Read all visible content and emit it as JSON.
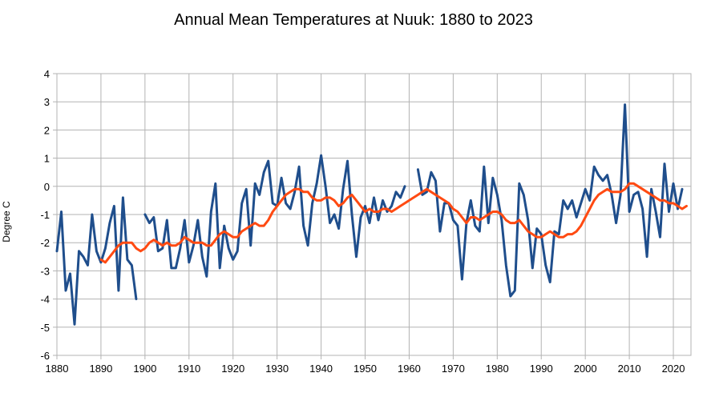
{
  "chart_data": {
    "type": "line",
    "title": "Annual Mean Temperatures at Nuuk: 1880 to 2023",
    "xlabel": "",
    "ylabel": "Degree C",
    "xlim": [
      1880,
      2024
    ],
    "ylim": [
      -6,
      4
    ],
    "x_ticks": [
      1880,
      1890,
      1900,
      1910,
      1920,
      1930,
      1940,
      1950,
      1960,
      1970,
      1980,
      1990,
      2000,
      2010,
      2020
    ],
    "y_ticks": [
      -6,
      -5,
      -4,
      -3,
      -2,
      -1,
      0,
      1,
      2,
      3,
      4
    ],
    "grid": true,
    "legend": "none",
    "series": [
      {
        "color": "#1f4e8c",
        "x_start": 1880,
        "values": [
          -2.3,
          -0.9,
          -3.7,
          -3.1,
          -4.9,
          -2.3,
          -2.5,
          -2.8,
          -1.0,
          -2.3,
          -2.7,
          -2.2,
          -1.3,
          -0.7,
          -3.7,
          -0.4,
          -2.6,
          -2.8,
          -4.0,
          null,
          -1.0,
          -1.3,
          -1.1,
          -2.3,
          -2.2,
          -1.2,
          -2.9,
          -2.9,
          -2.2,
          -1.2,
          -2.7,
          -2.1,
          -1.2,
          -2.5,
          -3.2,
          -0.9,
          0.1,
          -2.9,
          -1.4,
          -2.2,
          -2.6,
          -2.3,
          -0.6,
          -0.1,
          -2.1,
          0.1,
          -0.3,
          0.5,
          0.9,
          -0.6,
          -0.7,
          0.3,
          -0.6,
          -0.8,
          -0.2,
          0.7,
          -1.4,
          -2.1,
          -0.6,
          0.1,
          1.1,
          0.0,
          -1.3,
          -1.0,
          -1.5,
          -0.1,
          0.9,
          -1.0,
          -2.5,
          -1.1,
          -0.7,
          -1.3,
          -0.4,
          -1.2,
          -0.5,
          -0.9,
          -0.7,
          -0.2,
          -0.4,
          0.0,
          null,
          null,
          0.6,
          -0.3,
          -0.2,
          0.5,
          0.2,
          -1.6,
          -0.6,
          -0.6,
          -1.2,
          -1.4,
          -3.3,
          -1.3,
          -0.5,
          -1.4,
          -1.6,
          0.7,
          -1.3,
          0.3,
          -0.3,
          -1.2,
          -2.8,
          -3.9,
          -3.7,
          0.1,
          -0.3,
          -1.2,
          -2.9,
          -1.5,
          -1.7,
          -2.8,
          -3.4,
          -1.6,
          -1.7,
          -0.5,
          -0.8,
          -0.5,
          -1.1,
          -0.6,
          -0.1,
          -0.5,
          0.7,
          0.4,
          0.2,
          0.4,
          -0.3,
          -1.3,
          -0.3,
          2.9,
          -0.9,
          -0.3,
          -0.2,
          -0.8,
          -2.5,
          -0.1,
          -0.9,
          -1.8,
          0.8,
          -0.9,
          0.1,
          -0.8,
          -0.1
        ]
      },
      {
        "color": "#ff4a12",
        "x_start": 1890,
        "values": [
          -2.6,
          -2.7,
          -2.5,
          -2.3,
          -2.1,
          -2.0,
          -2.0,
          -2.0,
          -2.2,
          -2.3,
          -2.2,
          -2.0,
          -1.9,
          -2.0,
          -2.1,
          -2.0,
          -2.1,
          -2.1,
          -2.0,
          -1.8,
          -1.9,
          -2.0,
          -2.0,
          -2.0,
          -2.1,
          -2.1,
          -1.9,
          -1.7,
          -1.6,
          -1.7,
          -1.8,
          -1.8,
          -1.6,
          -1.5,
          -1.4,
          -1.3,
          -1.4,
          -1.4,
          -1.2,
          -0.9,
          -0.7,
          -0.5,
          -0.3,
          -0.2,
          -0.1,
          -0.1,
          -0.2,
          -0.2,
          -0.4,
          -0.5,
          -0.5,
          -0.4,
          -0.4,
          -0.5,
          -0.7,
          -0.6,
          -0.4,
          -0.3,
          -0.5,
          -0.7,
          -0.9,
          -0.8,
          -0.9,
          -0.9,
          -0.8,
          -0.8,
          -0.9,
          -0.8,
          -0.7,
          -0.6,
          -0.5,
          -0.4,
          -0.3,
          -0.2,
          -0.1,
          -0.2,
          -0.3,
          -0.4,
          -0.5,
          -0.6,
          -0.8,
          -0.9,
          -1.1,
          -1.3,
          -1.1,
          -1.1,
          -1.2,
          -1.1,
          -1.0,
          -0.9,
          -0.9,
          -1.0,
          -1.2,
          -1.3,
          -1.3,
          -1.2,
          -1.4,
          -1.6,
          -1.7,
          -1.8,
          -1.8,
          -1.7,
          -1.6,
          -1.7,
          -1.8,
          -1.8,
          -1.7,
          -1.7,
          -1.6,
          -1.4,
          -1.1,
          -0.8,
          -0.5,
          -0.3,
          -0.2,
          -0.1,
          -0.2,
          -0.2,
          -0.2,
          -0.1,
          0.1,
          0.1,
          0.0,
          -0.1,
          -0.2,
          -0.3,
          -0.4,
          -0.5,
          -0.5,
          -0.6,
          -0.6,
          -0.7,
          -0.8,
          -0.7
        ]
      }
    ]
  }
}
